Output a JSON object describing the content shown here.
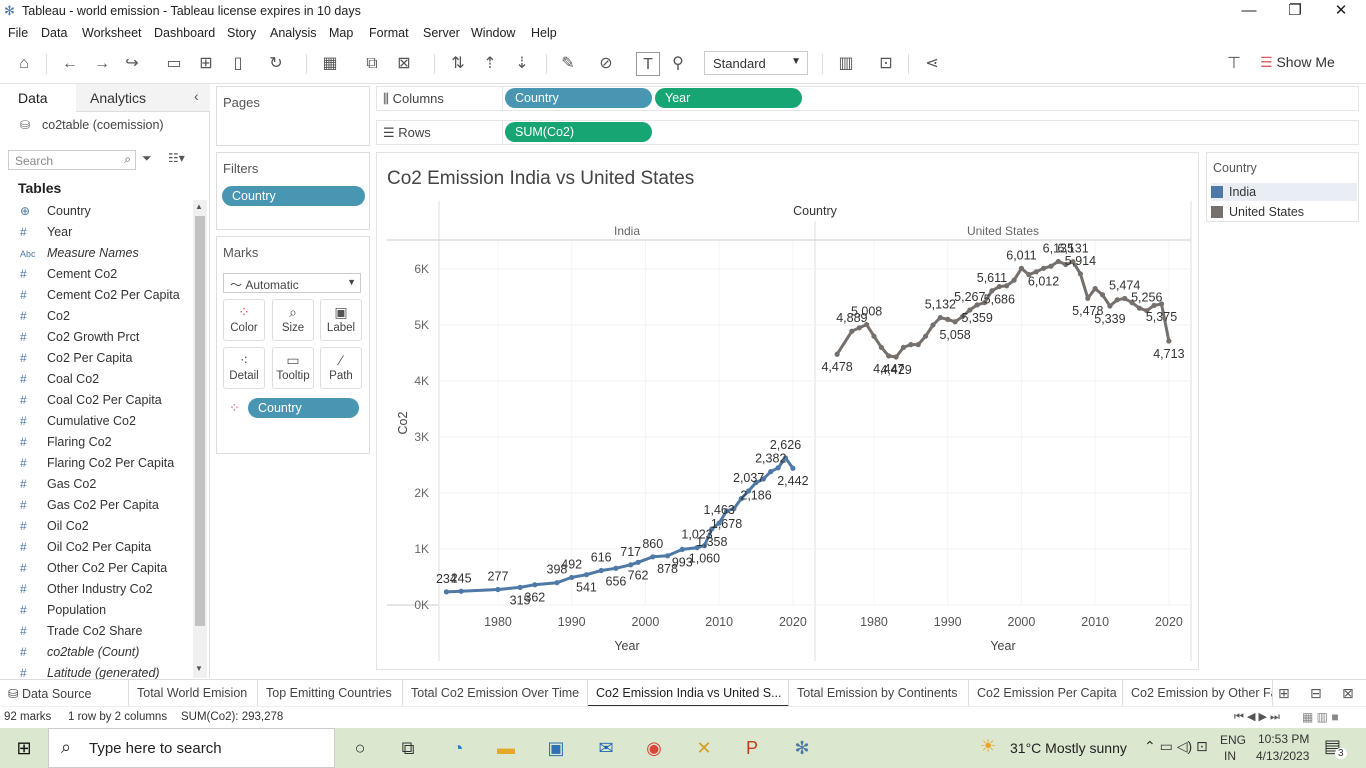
{
  "window": {
    "title": "Tableau - world emission - Tableau license expires in 10 days"
  },
  "menu": [
    "File",
    "Data",
    "Worksheet",
    "Dashboard",
    "Story",
    "Analysis",
    "Map",
    "Format",
    "Server",
    "Window",
    "Help"
  ],
  "toolbar": {
    "fit_select": "Standard",
    "show_me": "Show Me"
  },
  "left_pane": {
    "tab_data": "Data",
    "tab_analytics": "Analytics",
    "datasource": "co2table (coemission)",
    "search_placeholder": "Search",
    "tables_heading": "Tables",
    "fields": [
      {
        "icon": "globe-icon",
        "glyph": "⊕",
        "label": "Country",
        "italic": false
      },
      {
        "icon": "number-icon",
        "glyph": "#",
        "label": "Year",
        "italic": false
      },
      {
        "icon": "abc-icon",
        "glyph": "Abc",
        "label": "Measure Names",
        "italic": true
      },
      {
        "icon": "number-icon",
        "glyph": "#",
        "label": "Cement Co2",
        "italic": false
      },
      {
        "icon": "number-icon",
        "glyph": "#",
        "label": "Cement Co2 Per Capita",
        "italic": false
      },
      {
        "icon": "number-icon",
        "glyph": "#",
        "label": "Co2",
        "italic": false
      },
      {
        "icon": "number-icon",
        "glyph": "#",
        "label": "Co2 Growth Prct",
        "italic": false
      },
      {
        "icon": "number-icon",
        "glyph": "#",
        "label": "Co2 Per Capita",
        "italic": false
      },
      {
        "icon": "number-icon",
        "glyph": "#",
        "label": "Coal Co2",
        "italic": false
      },
      {
        "icon": "number-icon",
        "glyph": "#",
        "label": "Coal Co2 Per Capita",
        "italic": false
      },
      {
        "icon": "number-icon",
        "glyph": "#",
        "label": "Cumulative Co2",
        "italic": false
      },
      {
        "icon": "number-icon",
        "glyph": "#",
        "label": "Flaring Co2",
        "italic": false
      },
      {
        "icon": "number-icon",
        "glyph": "#",
        "label": "Flaring Co2 Per Capita",
        "italic": false
      },
      {
        "icon": "number-icon",
        "glyph": "#",
        "label": "Gas Co2",
        "italic": false
      },
      {
        "icon": "number-icon",
        "glyph": "#",
        "label": "Gas Co2 Per Capita",
        "italic": false
      },
      {
        "icon": "number-icon",
        "glyph": "#",
        "label": "Oil Co2",
        "italic": false
      },
      {
        "icon": "number-icon",
        "glyph": "#",
        "label": "Oil Co2 Per Capita",
        "italic": false
      },
      {
        "icon": "number-icon",
        "glyph": "#",
        "label": "Other Co2 Per Capita",
        "italic": false
      },
      {
        "icon": "number-icon",
        "glyph": "#",
        "label": "Other Industry Co2",
        "italic": false
      },
      {
        "icon": "number-icon",
        "glyph": "#",
        "label": "Population",
        "italic": false
      },
      {
        "icon": "number-icon",
        "glyph": "#",
        "label": "Trade Co2 Share",
        "italic": false
      },
      {
        "icon": "number-icon",
        "glyph": "#",
        "label": "co2table (Count)",
        "italic": true
      },
      {
        "icon": "number-icon",
        "glyph": "#",
        "label": "Latitude (generated)",
        "italic": true
      }
    ]
  },
  "cards": {
    "pages": "Pages",
    "filters": "Filters",
    "filter_pill": "Country",
    "marks": "Marks",
    "mark_type": "Automatic",
    "mark_buttons": [
      "Color",
      "Size",
      "Label",
      "Detail",
      "Tooltip",
      "Path"
    ],
    "marks_pill": "Country"
  },
  "shelves": {
    "columns_label": "Columns",
    "rows_label": "Rows",
    "columns_pills": [
      "Country",
      "Year"
    ],
    "rows_pill": "SUM(Co2)"
  },
  "legend": {
    "title": "Country",
    "items": [
      {
        "label": "India",
        "color": "#4e79a7"
      },
      {
        "label": "United States",
        "color": "#76706c"
      }
    ]
  },
  "chart_data": {
    "type": "line",
    "title": "Co2 Emission India vs United States",
    "header_top": "Country",
    "ylabel": "Co2",
    "xlabel": "Year",
    "ylim": [
      0,
      6500
    ],
    "yticks": [
      0,
      1000,
      2000,
      3000,
      4000,
      5000,
      6000
    ],
    "ytick_labels": [
      "0K",
      "1K",
      "2K",
      "3K",
      "4K",
      "5K",
      "6K"
    ],
    "xticks": [
      1980,
      1990,
      2000,
      2010,
      2020
    ],
    "xlim": [
      1972,
      2023
    ],
    "grid": true,
    "panels": [
      {
        "name": "India",
        "color": "#4e79a7",
        "x": [
          1973,
          1975,
          1980,
          1983,
          1985,
          1988,
          1990,
          1992,
          1994,
          1996,
          1998,
          1999,
          2001,
          2003,
          2005,
          2007,
          2008,
          2009,
          2010,
          2011,
          2012,
          2013,
          2014,
          2015,
          2016,
          2017,
          2018,
          2019,
          2020
        ],
        "y": [
          234,
          245,
          277,
          315,
          362,
          398,
          492,
          541,
          616,
          656,
          717,
          762,
          860,
          878,
          993,
          1023,
          1060,
          1358,
          1463,
          1678,
          1720,
          1900,
          2037,
          2186,
          2250,
          2382,
          2450,
          2626,
          2442
        ],
        "labels": [
          {
            "x": 1973,
            "text": "234",
            "pos": "above"
          },
          {
            "x": 1975,
            "text": "245",
            "pos": "above"
          },
          {
            "x": 1980,
            "text": "277",
            "pos": "above"
          },
          {
            "x": 1983,
            "text": "315",
            "pos": "below"
          },
          {
            "x": 1985,
            "text": "362",
            "pos": "below"
          },
          {
            "x": 1988,
            "text": "398",
            "pos": "above"
          },
          {
            "x": 1990,
            "text": "492",
            "pos": "above"
          },
          {
            "x": 1992,
            "text": "541",
            "pos": "below"
          },
          {
            "x": 1994,
            "text": "616",
            "pos": "above"
          },
          {
            "x": 1996,
            "text": "656",
            "pos": "below"
          },
          {
            "x": 1998,
            "text": "717",
            "pos": "above"
          },
          {
            "x": 1999,
            "text": "762",
            "pos": "below"
          },
          {
            "x": 2001,
            "text": "860",
            "pos": "above"
          },
          {
            "x": 2003,
            "text": "878",
            "pos": "below"
          },
          {
            "x": 2005,
            "text": "993",
            "pos": "below"
          },
          {
            "x": 2007,
            "text": "1,023",
            "pos": "above"
          },
          {
            "x": 2008,
            "text": "1,060",
            "pos": "below"
          },
          {
            "x": 2009,
            "text": "1,358",
            "pos": "below"
          },
          {
            "x": 2010,
            "text": "1,463",
            "pos": "above"
          },
          {
            "x": 2011,
            "text": "1,678",
            "pos": "below"
          },
          {
            "x": 2014,
            "text": "2,037",
            "pos": "above"
          },
          {
            "x": 2015,
            "text": "2,186",
            "pos": "below"
          },
          {
            "x": 2017,
            "text": "2,382",
            "pos": "above"
          },
          {
            "x": 2019,
            "text": "2,626",
            "pos": "above"
          },
          {
            "x": 2020,
            "text": "2,442",
            "pos": "below"
          }
        ]
      },
      {
        "name": "United States",
        "color": "#76706c",
        "x": [
          1975,
          1977,
          1978,
          1979,
          1980,
          1981,
          1982,
          1983,
          1984,
          1985,
          1986,
          1987,
          1988,
          1989,
          1990,
          1991,
          1992,
          1993,
          1994,
          1995,
          1996,
          1997,
          1998,
          1999,
          2000,
          2001,
          2002,
          2003,
          2004,
          2005,
          2006,
          2007,
          2008,
          2009,
          2010,
          2011,
          2012,
          2013,
          2014,
          2015,
          2016,
          2017,
          2018,
          2019,
          2020
        ],
        "y": [
          4478,
          4889,
          4950,
          5008,
          4800,
          4600,
          4447,
          4429,
          4600,
          4650,
          4650,
          4800,
          5000,
          5132,
          5100,
          5058,
          5150,
          5267,
          5359,
          5400,
          5611,
          5686,
          5700,
          5800,
          6011,
          5900,
          5950,
          6012,
          6050,
          6135,
          6080,
          6131,
          5914,
          5478,
          5650,
          5540,
          5339,
          5450,
          5474,
          5400,
          5300,
          5256,
          5350,
          5375,
          4713
        ],
        "labels": [
          {
            "x": 1975,
            "text": "4,478",
            "pos": "below"
          },
          {
            "x": 1977,
            "text": "4,889",
            "pos": "above"
          },
          {
            "x": 1979,
            "text": "5,008",
            "pos": "above"
          },
          {
            "x": 1982,
            "text": "4,447",
            "pos": "below"
          },
          {
            "x": 1983,
            "text": "4,429",
            "pos": "below"
          },
          {
            "x": 1989,
            "text": "5,132",
            "pos": "above"
          },
          {
            "x": 1991,
            "text": "5,058",
            "pos": "below"
          },
          {
            "x": 1993,
            "text": "5,267",
            "pos": "above"
          },
          {
            "x": 1994,
            "text": "5,359",
            "pos": "below"
          },
          {
            "x": 1996,
            "text": "5,611",
            "pos": "above"
          },
          {
            "x": 1997,
            "text": "5,686",
            "pos": "below"
          },
          {
            "x": 2000,
            "text": "6,011",
            "pos": "above"
          },
          {
            "x": 2003,
            "text": "6,012",
            "pos": "below"
          },
          {
            "x": 2005,
            "text": "6,135",
            "pos": "above"
          },
          {
            "x": 2007,
            "text": "6,131",
            "pos": "above"
          },
          {
            "x": 2008,
            "text": "5,914",
            "pos": "above"
          },
          {
            "x": 2009,
            "text": "5,478",
            "pos": "below"
          },
          {
            "x": 2012,
            "text": "5,339",
            "pos": "below"
          },
          {
            "x": 2014,
            "text": "5,474",
            "pos": "above"
          },
          {
            "x": 2017,
            "text": "5,256",
            "pos": "above"
          },
          {
            "x": 2019,
            "text": "5,375",
            "pos": "below"
          },
          {
            "x": 2020,
            "text": "4,713",
            "pos": "below"
          }
        ]
      }
    ]
  },
  "sheet_tabs": [
    "Data Source",
    "Total World Emision",
    "Top Emitting Countries",
    "Total Co2 Emission Over Time",
    "Co2 Emission India vs United S...",
    "Total Emission by Continents",
    "Co2 Emission Per Capita",
    "Co2 Emission by Other Fa"
  ],
  "active_tab": 4,
  "status": {
    "marks": "92 marks",
    "layout": "1 row by 2 columns",
    "sum": "SUM(Co2): 293,278"
  },
  "taskbar": {
    "search_placeholder": "Type here to search",
    "weather": "31°C  Mostly sunny",
    "lang_top": "ENG",
    "lang_bottom": "IN",
    "time": "10:53 PM",
    "date": "4/13/2023",
    "notif_count": "3"
  }
}
